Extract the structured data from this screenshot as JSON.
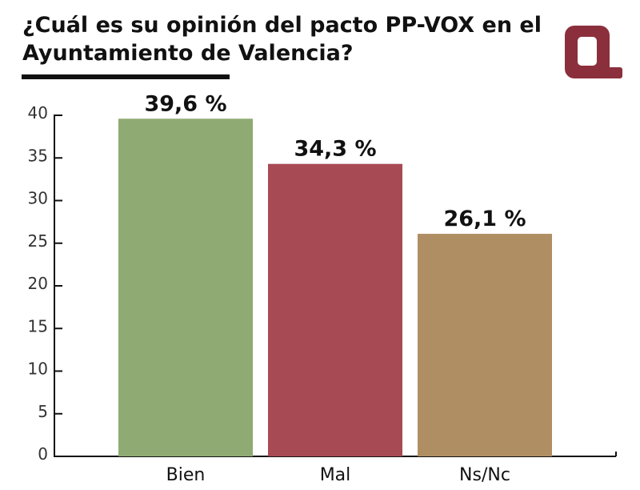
{
  "chart_data": {
    "type": "bar",
    "title": "¿Cuál es su opinión del pacto PP-VOX en el Ayuntamiento de Valencia?",
    "categories": [
      "Bien",
      "Mal",
      "Ns/Nc"
    ],
    "values": [
      39.6,
      34.3,
      26.1
    ],
    "data_labels": [
      "39,6 %",
      "34,3 %",
      "26,1 %"
    ],
    "colors": [
      "#8faa72",
      "#a84a54",
      "#b08e63"
    ],
    "yticks": [
      "0",
      "5",
      "10",
      "15",
      "20",
      "25",
      "30",
      "35",
      "40"
    ],
    "ylim": [
      0,
      40
    ],
    "xlabel": "",
    "ylabel": "",
    "grid": false,
    "legend": "none"
  },
  "brand": {
    "logo": "Q-logo",
    "logo_color": "#8b2f3c"
  }
}
